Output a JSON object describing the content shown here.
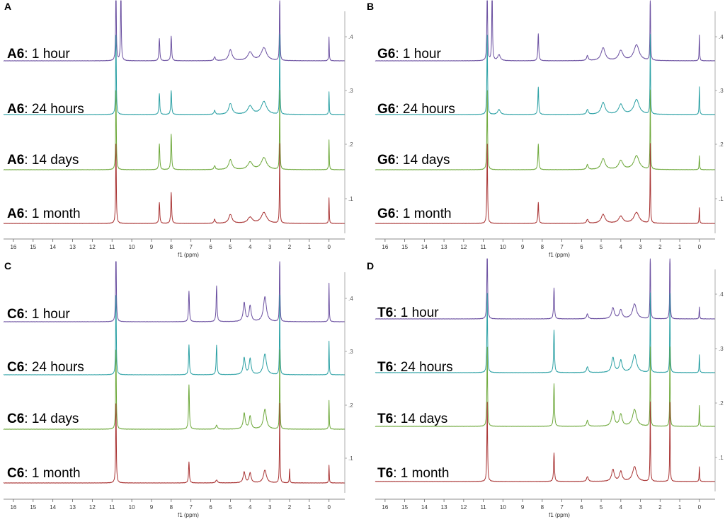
{
  "chart_data": [
    {
      "panel": "A",
      "type": "line",
      "sample": "A6",
      "xlabel": "f1 (ppm)",
      "xlim": [
        16.5,
        -0.8
      ],
      "x_ticks": [
        16,
        15,
        14,
        13,
        12,
        11,
        10,
        9,
        8,
        7,
        6,
        5,
        4,
        3,
        2,
        1,
        0
      ],
      "offset_ticks": [
        ".4",
        ".3",
        ".2",
        ".1"
      ],
      "series": [
        {
          "label_prefix": "A6",
          "label_suffix": ": 1 hour",
          "color": "#6a4fa0",
          "peaks": [
            {
              "x": 10.8,
              "h": 1.6,
              "w": 0.02
            },
            {
              "x": 10.55,
              "h": 1.6,
              "w": 0.02
            },
            {
              "x": 8.6,
              "h": 0.45,
              "w": 0.025
            },
            {
              "x": 8.0,
              "h": 0.5,
              "w": 0.025
            },
            {
              "x": 5.8,
              "h": 0.08,
              "w": 0.04
            },
            {
              "x": 5.0,
              "h": 0.22,
              "w": 0.1
            },
            {
              "x": 4.0,
              "h": 0.17,
              "w": 0.14
            },
            {
              "x": 3.3,
              "h": 0.26,
              "w": 0.16
            },
            {
              "x": 2.5,
              "h": 1.6,
              "w": 0.015
            },
            {
              "x": 0.0,
              "h": 0.48,
              "w": 0.015
            }
          ]
        },
        {
          "label_prefix": "A6",
          "label_suffix": ": 24 hours",
          "color": "#2aa0a4",
          "peaks": [
            {
              "x": 10.8,
              "h": 1.6,
              "w": 0.02
            },
            {
              "x": 8.6,
              "h": 0.42,
              "w": 0.025
            },
            {
              "x": 8.0,
              "h": 0.48,
              "w": 0.025
            },
            {
              "x": 5.8,
              "h": 0.08,
              "w": 0.04
            },
            {
              "x": 5.0,
              "h": 0.22,
              "w": 0.1
            },
            {
              "x": 4.0,
              "h": 0.17,
              "w": 0.14
            },
            {
              "x": 3.3,
              "h": 0.26,
              "w": 0.16
            },
            {
              "x": 2.5,
              "h": 1.6,
              "w": 0.015
            },
            {
              "x": 0.0,
              "h": 0.46,
              "w": 0.015
            }
          ]
        },
        {
          "label_prefix": "A6",
          "label_suffix": ": 14 days",
          "color": "#6da83a",
          "peaks": [
            {
              "x": 10.8,
              "h": 1.6,
              "w": 0.02
            },
            {
              "x": 8.6,
              "h": 0.52,
              "w": 0.025
            },
            {
              "x": 8.0,
              "h": 0.72,
              "w": 0.025
            },
            {
              "x": 5.8,
              "h": 0.08,
              "w": 0.04
            },
            {
              "x": 5.0,
              "h": 0.2,
              "w": 0.1
            },
            {
              "x": 4.0,
              "h": 0.15,
              "w": 0.14
            },
            {
              "x": 3.3,
              "h": 0.24,
              "w": 0.16
            },
            {
              "x": 2.5,
              "h": 1.6,
              "w": 0.015
            },
            {
              "x": 0.0,
              "h": 0.6,
              "w": 0.015
            }
          ]
        },
        {
          "label_prefix": "A6",
          "label_suffix": ": 1 month",
          "color": "#a83232",
          "peaks": [
            {
              "x": 10.8,
              "h": 1.6,
              "w": 0.02
            },
            {
              "x": 8.6,
              "h": 0.42,
              "w": 0.025
            },
            {
              "x": 8.0,
              "h": 0.62,
              "w": 0.025
            },
            {
              "x": 5.8,
              "h": 0.08,
              "w": 0.04
            },
            {
              "x": 5.0,
              "h": 0.18,
              "w": 0.1
            },
            {
              "x": 4.0,
              "h": 0.12,
              "w": 0.14
            },
            {
              "x": 3.3,
              "h": 0.22,
              "w": 0.16
            },
            {
              "x": 2.5,
              "h": 1.6,
              "w": 0.015
            },
            {
              "x": 0.0,
              "h": 0.52,
              "w": 0.015
            }
          ]
        }
      ]
    },
    {
      "panel": "B",
      "type": "line",
      "sample": "G6",
      "xlabel": "f1 (ppm)",
      "xlim": [
        16.5,
        -0.8
      ],
      "x_ticks": [
        16,
        15,
        14,
        13,
        12,
        11,
        10,
        9,
        8,
        7,
        6,
        5,
        4,
        3,
        2,
        1,
        0
      ],
      "offset_ticks": [
        ".4",
        ".3",
        ".2",
        ".1"
      ],
      "series": [
        {
          "label_prefix": "G6",
          "label_suffix": ": 1 hour",
          "color": "#6a4fa0",
          "peaks": [
            {
              "x": 10.8,
              "h": 1.6,
              "w": 0.02
            },
            {
              "x": 10.55,
              "h": 1.6,
              "w": 0.02
            },
            {
              "x": 10.2,
              "h": 0.12,
              "w": 0.08
            },
            {
              "x": 8.2,
              "h": 0.55,
              "w": 0.025
            },
            {
              "x": 5.7,
              "h": 0.1,
              "w": 0.05
            },
            {
              "x": 4.9,
              "h": 0.26,
              "w": 0.12
            },
            {
              "x": 4.0,
              "h": 0.2,
              "w": 0.13
            },
            {
              "x": 3.2,
              "h": 0.32,
              "w": 0.16
            },
            {
              "x": 2.5,
              "h": 1.6,
              "w": 0.015
            },
            {
              "x": 0.0,
              "h": 0.52,
              "w": 0.015
            }
          ]
        },
        {
          "label_prefix": "G6",
          "label_suffix": ": 24 hours",
          "color": "#2aa0a4",
          "peaks": [
            {
              "x": 10.8,
              "h": 1.6,
              "w": 0.02
            },
            {
              "x": 10.2,
              "h": 0.1,
              "w": 0.08
            },
            {
              "x": 8.2,
              "h": 0.55,
              "w": 0.025
            },
            {
              "x": 5.7,
              "h": 0.1,
              "w": 0.05
            },
            {
              "x": 4.9,
              "h": 0.24,
              "w": 0.12
            },
            {
              "x": 4.0,
              "h": 0.2,
              "w": 0.13
            },
            {
              "x": 3.2,
              "h": 0.3,
              "w": 0.16
            },
            {
              "x": 2.5,
              "h": 1.6,
              "w": 0.015
            },
            {
              "x": 0.0,
              "h": 0.56,
              "w": 0.015
            }
          ]
        },
        {
          "label_prefix": "G6",
          "label_suffix": ": 14 days",
          "color": "#6da83a",
          "peaks": [
            {
              "x": 10.8,
              "h": 1.6,
              "w": 0.02
            },
            {
              "x": 8.2,
              "h": 0.52,
              "w": 0.025
            },
            {
              "x": 5.7,
              "h": 0.1,
              "w": 0.05
            },
            {
              "x": 4.9,
              "h": 0.22,
              "w": 0.12
            },
            {
              "x": 4.0,
              "h": 0.18,
              "w": 0.13
            },
            {
              "x": 3.2,
              "h": 0.28,
              "w": 0.16
            },
            {
              "x": 2.5,
              "h": 1.6,
              "w": 0.015
            },
            {
              "x": 0.0,
              "h": 0.28,
              "w": 0.015
            }
          ]
        },
        {
          "label_prefix": "G6",
          "label_suffix": ": 1 month",
          "color": "#a83232",
          "peaks": [
            {
              "x": 10.8,
              "h": 1.6,
              "w": 0.02
            },
            {
              "x": 8.2,
              "h": 0.42,
              "w": 0.025
            },
            {
              "x": 5.7,
              "h": 0.08,
              "w": 0.05
            },
            {
              "x": 4.9,
              "h": 0.18,
              "w": 0.12
            },
            {
              "x": 4.0,
              "h": 0.14,
              "w": 0.13
            },
            {
              "x": 3.2,
              "h": 0.22,
              "w": 0.16
            },
            {
              "x": 2.5,
              "h": 1.6,
              "w": 0.015
            },
            {
              "x": 0.0,
              "h": 0.32,
              "w": 0.015
            }
          ]
        }
      ]
    },
    {
      "panel": "C",
      "type": "line",
      "sample": "C6",
      "xlabel": "f1 (ppm)",
      "xlim": [
        16.5,
        -0.8
      ],
      "x_ticks": [
        16,
        15,
        14,
        13,
        12,
        11,
        10,
        9,
        8,
        7,
        6,
        5,
        4,
        3,
        2,
        1,
        0
      ],
      "offset_ticks": [
        ".4",
        ".3",
        ".2",
        ".1"
      ],
      "series": [
        {
          "label_prefix": "C6",
          "label_suffix": ": 1 hour",
          "color": "#6a4fa0",
          "peaks": [
            {
              "x": 10.8,
              "h": 1.6,
              "w": 0.02
            },
            {
              "x": 7.1,
              "h": 0.62,
              "w": 0.025
            },
            {
              "x": 5.7,
              "h": 0.72,
              "w": 0.025
            },
            {
              "x": 4.3,
              "h": 0.38,
              "w": 0.06
            },
            {
              "x": 4.0,
              "h": 0.32,
              "w": 0.06
            },
            {
              "x": 3.25,
              "h": 0.5,
              "w": 0.09
            },
            {
              "x": 2.5,
              "h": 1.6,
              "w": 0.015
            },
            {
              "x": 0.0,
              "h": 0.78,
              "w": 0.015
            }
          ]
        },
        {
          "label_prefix": "C6",
          "label_suffix": ": 24 hours",
          "color": "#2aa0a4",
          "peaks": [
            {
              "x": 10.8,
              "h": 1.6,
              "w": 0.02
            },
            {
              "x": 7.1,
              "h": 0.6,
              "w": 0.025
            },
            {
              "x": 5.7,
              "h": 0.6,
              "w": 0.025
            },
            {
              "x": 4.3,
              "h": 0.34,
              "w": 0.06
            },
            {
              "x": 4.0,
              "h": 0.32,
              "w": 0.06
            },
            {
              "x": 3.25,
              "h": 0.42,
              "w": 0.09
            },
            {
              "x": 2.5,
              "h": 1.6,
              "w": 0.015
            },
            {
              "x": 0.0,
              "h": 0.68,
              "w": 0.015
            }
          ]
        },
        {
          "label_prefix": "C6",
          "label_suffix": ": 14 days",
          "color": "#6da83a",
          "peaks": [
            {
              "x": 10.8,
              "h": 1.6,
              "w": 0.02
            },
            {
              "x": 7.1,
              "h": 0.9,
              "w": 0.025
            },
            {
              "x": 5.7,
              "h": 0.08,
              "w": 0.05
            },
            {
              "x": 4.3,
              "h": 0.32,
              "w": 0.06
            },
            {
              "x": 4.0,
              "h": 0.26,
              "w": 0.06
            },
            {
              "x": 3.25,
              "h": 0.4,
              "w": 0.09
            },
            {
              "x": 2.5,
              "h": 1.6,
              "w": 0.015
            },
            {
              "x": 0.0,
              "h": 0.58,
              "w": 0.015
            }
          ]
        },
        {
          "label_prefix": "C6",
          "label_suffix": ": 1 month",
          "color": "#a83232",
          "peaks": [
            {
              "x": 10.8,
              "h": 1.6,
              "w": 0.02
            },
            {
              "x": 7.1,
              "h": 0.42,
              "w": 0.025
            },
            {
              "x": 5.7,
              "h": 0.06,
              "w": 0.05
            },
            {
              "x": 4.3,
              "h": 0.22,
              "w": 0.06
            },
            {
              "x": 4.0,
              "h": 0.2,
              "w": 0.06
            },
            {
              "x": 3.25,
              "h": 0.26,
              "w": 0.09
            },
            {
              "x": 2.5,
              "h": 1.6,
              "w": 0.015
            },
            {
              "x": 2.0,
              "h": 0.28,
              "w": 0.015
            },
            {
              "x": 0.0,
              "h": 0.36,
              "w": 0.015
            }
          ]
        }
      ]
    },
    {
      "panel": "D",
      "type": "line",
      "sample": "T6",
      "xlabel": "f1 (ppm)",
      "xlim": [
        16.5,
        -0.8
      ],
      "x_ticks": [
        16,
        15,
        14,
        13,
        12,
        11,
        10,
        9,
        8,
        7,
        6,
        5,
        4,
        3,
        2,
        1,
        0
      ],
      "offset_ticks": [
        ".4",
        ".3",
        ".2",
        ".1"
      ],
      "series": [
        {
          "label_prefix": "T6",
          "label_suffix": ": 1 hour",
          "color": "#6a4fa0",
          "peaks": [
            {
              "x": 10.8,
              "h": 1.6,
              "w": 0.02
            },
            {
              "x": 7.4,
              "h": 0.62,
              "w": 0.025
            },
            {
              "x": 5.7,
              "h": 0.1,
              "w": 0.05
            },
            {
              "x": 4.4,
              "h": 0.22,
              "w": 0.08
            },
            {
              "x": 4.0,
              "h": 0.18,
              "w": 0.08
            },
            {
              "x": 3.3,
              "h": 0.3,
              "w": 0.12
            },
            {
              "x": 2.5,
              "h": 1.6,
              "w": 0.015
            },
            {
              "x": 1.5,
              "h": 1.6,
              "w": 0.015
            },
            {
              "x": 0.0,
              "h": 0.24,
              "w": 0.015
            }
          ]
        },
        {
          "label_prefix": "T6",
          "label_suffix": ": 24 hours",
          "color": "#2aa0a4",
          "peaks": [
            {
              "x": 10.8,
              "h": 1.6,
              "w": 0.02
            },
            {
              "x": 7.4,
              "h": 0.86,
              "w": 0.025
            },
            {
              "x": 5.7,
              "h": 0.12,
              "w": 0.05
            },
            {
              "x": 4.4,
              "h": 0.3,
              "w": 0.08
            },
            {
              "x": 4.0,
              "h": 0.24,
              "w": 0.08
            },
            {
              "x": 3.3,
              "h": 0.36,
              "w": 0.12
            },
            {
              "x": 2.5,
              "h": 1.6,
              "w": 0.015
            },
            {
              "x": 1.5,
              "h": 1.6,
              "w": 0.015
            },
            {
              "x": 0.0,
              "h": 0.36,
              "w": 0.015
            }
          ]
        },
        {
          "label_prefix": "T6",
          "label_suffix": ": 14 days",
          "color": "#6da83a",
          "peaks": [
            {
              "x": 10.8,
              "h": 1.6,
              "w": 0.02
            },
            {
              "x": 7.4,
              "h": 0.86,
              "w": 0.025
            },
            {
              "x": 5.7,
              "h": 0.12,
              "w": 0.05
            },
            {
              "x": 4.4,
              "h": 0.3,
              "w": 0.08
            },
            {
              "x": 4.0,
              "h": 0.24,
              "w": 0.08
            },
            {
              "x": 3.3,
              "h": 0.34,
              "w": 0.12
            },
            {
              "x": 2.5,
              "h": 1.6,
              "w": 0.015
            },
            {
              "x": 1.5,
              "h": 1.6,
              "w": 0.015
            },
            {
              "x": 0.0,
              "h": 0.42,
              "w": 0.015
            }
          ]
        },
        {
          "label_prefix": "T6",
          "label_suffix": ": 1 month",
          "color": "#a83232",
          "peaks": [
            {
              "x": 10.8,
              "h": 1.6,
              "w": 0.02
            },
            {
              "x": 7.4,
              "h": 0.58,
              "w": 0.025
            },
            {
              "x": 5.7,
              "h": 0.1,
              "w": 0.05
            },
            {
              "x": 4.4,
              "h": 0.24,
              "w": 0.08
            },
            {
              "x": 4.0,
              "h": 0.2,
              "w": 0.08
            },
            {
              "x": 3.3,
              "h": 0.3,
              "w": 0.12
            },
            {
              "x": 2.5,
              "h": 1.6,
              "w": 0.015
            },
            {
              "x": 1.5,
              "h": 1.6,
              "w": 0.015
            },
            {
              "x": 0.0,
              "h": 0.3,
              "w": 0.015
            }
          ]
        }
      ]
    }
  ]
}
